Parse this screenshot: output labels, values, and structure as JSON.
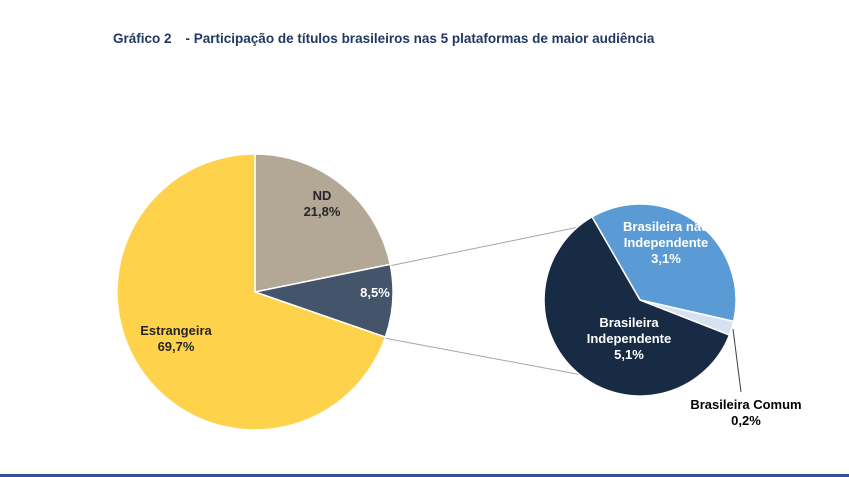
{
  "header": {
    "prefix": "Gráfico 2",
    "text": "- Participação de títulos brasileiros nas 5 plataformas de maior audiência"
  },
  "chart_data": {
    "type": "pie",
    "subtype": "pie-of-pie",
    "title": "Gráfico 2 - Participação de títulos brasileiros nas 5 plataformas de maior audiência",
    "units": "%",
    "legend": "none",
    "main_pie": {
      "start_angle": 0,
      "slices": [
        {
          "id": "nd",
          "label": "ND",
          "value": 21.8,
          "value_label": "21,8%",
          "color": "#B3A795"
        },
        {
          "id": "brasileira-detalhe",
          "label": "",
          "value": 8.5,
          "value_label": "8,5%",
          "color": "#44546A",
          "expands_to": "secondary_pie"
        },
        {
          "id": "estrangeira",
          "label": "Estrangeira",
          "value": 69.7,
          "value_label": "69,7%",
          "color": "#FFD24C"
        }
      ]
    },
    "secondary_pie": {
      "start_angle": -30,
      "slices": [
        {
          "id": "brasileira-nao-independente",
          "label": "Brasileira não Independente",
          "value": 3.1,
          "value_label": "3,1%",
          "color": "#5B9BD5"
        },
        {
          "id": "brasileira-comum",
          "label": "Brasileira Comum",
          "value": 0.2,
          "value_label": "0,2%",
          "color": "#D6E2F0"
        },
        {
          "id": "brasileira-independente",
          "label": "Brasileira Independente",
          "value": 5.1,
          "value_label": "5,1%",
          "color": "#182B45"
        }
      ]
    }
  },
  "labels": {
    "nd": [
      "ND",
      "21,8%"
    ],
    "detail": [
      "8,5%"
    ],
    "estrangeira": [
      "Estrangeira",
      "69,7%"
    ],
    "nao_independente": [
      "Brasileira não",
      "Independente",
      "3,1%"
    ],
    "independente": [
      "Brasileira",
      "Independente",
      "5,1%"
    ],
    "comum": [
      "Brasileira Comum",
      "0,2%"
    ]
  },
  "colors": {
    "title": "#1F3864",
    "connector_line": "#A6A6A6",
    "leader_line": "#404040",
    "bottom_border": "#2F5496"
  }
}
